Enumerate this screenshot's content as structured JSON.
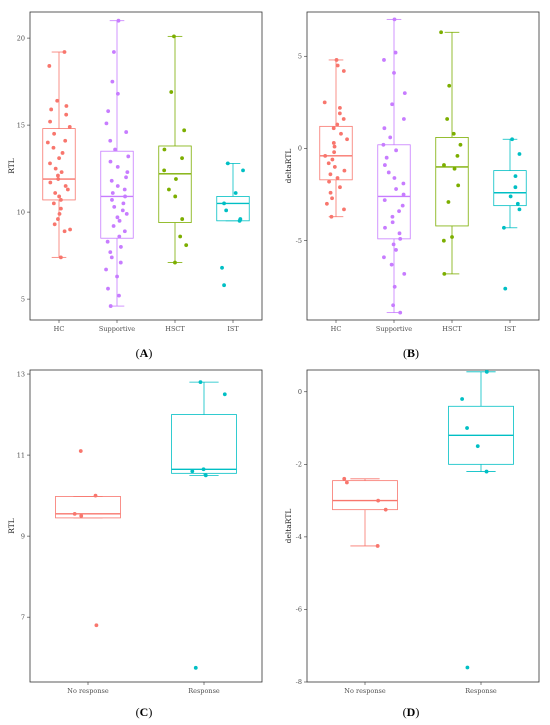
{
  "chart_data": [
    {
      "panel_label": "(A)",
      "type": "box",
      "ylabel": "RTL",
      "ylim": [
        3.8,
        21.5
      ],
      "yticks": [
        5,
        10,
        15,
        20
      ],
      "categories": [
        "HC",
        "Supportive",
        "HSCT",
        "IST"
      ],
      "colors": [
        "#F8766D",
        "#C77CFF",
        "#7CAE00",
        "#00BFC4"
      ],
      "boxes": [
        {
          "q1": 10.7,
          "median": 11.9,
          "q3": 14.8,
          "whisker_low": 7.4,
          "whisker_high": 19.2
        },
        {
          "q1": 8.5,
          "median": 10.9,
          "q3": 13.5,
          "whisker_low": 4.6,
          "whisker_high": 21.0
        },
        {
          "q1": 9.4,
          "median": 12.2,
          "q3": 13.8,
          "whisker_low": 7.1,
          "whisker_high": 20.1
        },
        {
          "q1": 9.5,
          "median": 10.5,
          "q3": 10.9,
          "whisker_low": 9.5,
          "whisker_high": 12.8
        }
      ],
      "points": [
        [
          19.2,
          18.4,
          16.4,
          16.1,
          15.9,
          15.6,
          15.2,
          14.9,
          14.5,
          14.1,
          14.0,
          13.7,
          13.4,
          13.1,
          12.8,
          12.5,
          12.3,
          12.1,
          11.9,
          11.7,
          11.5,
          11.3,
          11.1,
          10.9,
          10.7,
          10.5,
          10.2,
          9.9,
          9.6,
          9.3,
          9.0,
          8.9,
          7.4
        ],
        [
          21.0,
          19.2,
          17.5,
          16.8,
          15.8,
          15.1,
          14.6,
          14.1,
          13.6,
          13.2,
          12.9,
          12.6,
          12.3,
          12.0,
          11.8,
          11.5,
          11.3,
          11.1,
          10.9,
          10.7,
          10.5,
          10.3,
          10.1,
          9.9,
          9.7,
          9.5,
          9.2,
          8.9,
          8.6,
          8.3,
          8.0,
          7.7,
          7.4,
          7.1,
          6.7,
          6.3,
          5.6,
          5.2,
          4.6
        ],
        [
          20.1,
          16.9,
          14.7,
          13.6,
          13.1,
          12.4,
          11.9,
          11.3,
          10.9,
          9.6,
          8.6,
          8.1,
          7.1
        ],
        [
          12.8,
          12.4,
          11.1,
          10.5,
          10.1,
          9.6,
          9.5,
          6.8,
          5.8
        ]
      ]
    },
    {
      "panel_label": "(B)",
      "type": "box",
      "ylabel": "deltaRTL",
      "ylim": [
        -9.3,
        7.4
      ],
      "yticks": [
        -5,
        0,
        5
      ],
      "categories": [
        "HC",
        "Supportive",
        "HSCT",
        "IST"
      ],
      "colors": [
        "#F8766D",
        "#C77CFF",
        "#7CAE00",
        "#00BFC4"
      ],
      "boxes": [
        {
          "q1": -1.7,
          "median": -0.4,
          "q3": 1.2,
          "whisker_low": -3.7,
          "whisker_high": 4.8
        },
        {
          "q1": -4.9,
          "median": -2.6,
          "q3": 0.2,
          "whisker_low": -8.9,
          "whisker_high": 7.0
        },
        {
          "q1": -4.2,
          "median": -1.0,
          "q3": 0.6,
          "whisker_low": -6.8,
          "whisker_high": 6.3
        },
        {
          "q1": -3.1,
          "median": -2.4,
          "q3": -1.2,
          "whisker_low": -4.3,
          "whisker_high": 0.5
        }
      ],
      "points": [
        [
          4.8,
          4.5,
          4.2,
          2.5,
          2.2,
          1.9,
          1.6,
          1.3,
          1.1,
          0.8,
          0.5,
          0.3,
          0.1,
          -0.2,
          -0.4,
          -0.6,
          -0.8,
          -1.0,
          -1.2,
          -1.4,
          -1.6,
          -1.8,
          -2.1,
          -2.4,
          -2.7,
          -3.0,
          -3.3,
          -3.7
        ],
        [
          7.0,
          5.2,
          4.8,
          4.1,
          3.0,
          2.4,
          1.6,
          1.1,
          0.6,
          0.2,
          -0.1,
          -0.5,
          -0.9,
          -1.3,
          -1.6,
          -1.9,
          -2.2,
          -2.5,
          -2.8,
          -3.1,
          -3.4,
          -3.7,
          -4.0,
          -4.3,
          -4.6,
          -4.9,
          -5.2,
          -5.5,
          -5.9,
          -6.3,
          -6.8,
          -7.5,
          -8.5,
          -8.9
        ],
        [
          6.3,
          3.4,
          1.6,
          0.8,
          0.2,
          -0.4,
          -0.9,
          -1.1,
          -2.0,
          -2.9,
          -4.8,
          -5.0,
          -6.8
        ],
        [
          0.5,
          -0.3,
          -1.5,
          -2.1,
          -2.6,
          -3.0,
          -3.3,
          -4.3,
          -7.6
        ]
      ]
    },
    {
      "panel_label": "(C)",
      "type": "box",
      "ylabel": "RTL",
      "ylim": [
        5.4,
        13.1
      ],
      "yticks": [
        7,
        9,
        11,
        13
      ],
      "categories": [
        "No response",
        "Response"
      ],
      "colors": [
        "#F8766D",
        "#00BFC4"
      ],
      "boxes": [
        {
          "q1": 9.45,
          "median": 9.55,
          "q3": 9.98,
          "whisker_low": 9.45,
          "whisker_high": 9.98
        },
        {
          "q1": 10.55,
          "median": 10.65,
          "q3": 12.0,
          "whisker_low": 10.5,
          "whisker_high": 12.8
        }
      ],
      "points": [
        [
          11.1,
          10.0,
          9.55,
          9.5,
          6.8
        ],
        [
          12.8,
          12.5,
          10.65,
          10.6,
          10.5,
          5.75
        ]
      ]
    },
    {
      "panel_label": "(D)",
      "type": "box",
      "ylabel": "deltaRTL",
      "ylim": [
        -8.0,
        0.6
      ],
      "yticks": [
        -8,
        -6,
        -4,
        -2,
        0
      ],
      "categories": [
        "No response",
        "Response"
      ],
      "colors": [
        "#F8766D",
        "#00BFC4"
      ],
      "boxes": [
        {
          "q1": -3.25,
          "median": -3.0,
          "q3": -2.45,
          "whisker_low": -4.25,
          "whisker_high": -2.4
        },
        {
          "q1": -2.0,
          "median": -1.2,
          "q3": -0.4,
          "whisker_low": -2.2,
          "whisker_high": 0.55
        }
      ],
      "points": [
        [
          -2.4,
          -2.5,
          -3.0,
          -3.25,
          -4.25
        ],
        [
          0.55,
          -0.2,
          -1.0,
          -1.5,
          -2.2,
          -7.6
        ]
      ]
    }
  ]
}
